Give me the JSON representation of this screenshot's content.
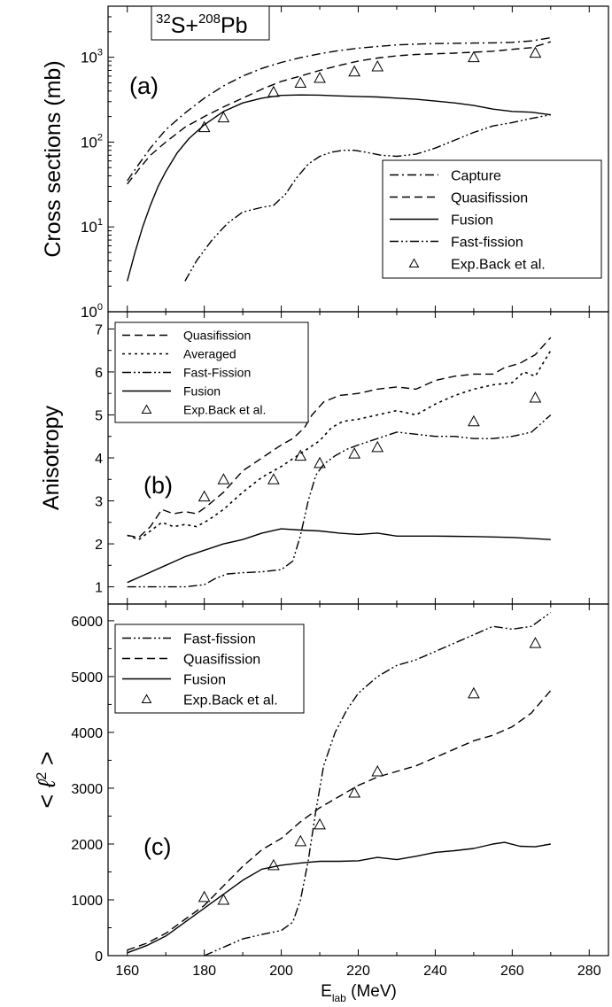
{
  "figure": {
    "xlabel_main": "E",
    "xlabel_sub": "lab",
    "xlabel_unit": " (MeV)"
  },
  "chart_data": [
    {
      "panel_label": "(a)",
      "type": "line",
      "y_scale": "log",
      "ylabel": "Cross sections (mb)",
      "title_parts": [
        "32",
        "S+",
        "208",
        "Pb"
      ],
      "xlim": [
        155,
        285
      ],
      "ylim": [
        1,
        4000
      ],
      "x_ticks": [
        160,
        180,
        200,
        220,
        240,
        260,
        280
      ],
      "y_ticks": [
        {
          "value": 1,
          "base": "10",
          "exp": "0"
        },
        {
          "value": 10,
          "base": "10",
          "exp": "1"
        },
        {
          "value": 100,
          "base": "10",
          "exp": "2"
        },
        {
          "value": 1000,
          "base": "10",
          "exp": "3"
        }
      ],
      "legend_position": "bottom-right",
      "series": [
        {
          "name": "Capture",
          "style": "dashdot",
          "x": [
            160,
            163,
            166,
            170,
            175,
            180,
            185,
            190,
            195,
            200,
            205,
            210,
            215,
            220,
            225,
            230,
            235,
            240,
            245,
            250,
            255,
            260,
            265,
            270
          ],
          "y": [
            35,
            55,
            85,
            140,
            220,
            330,
            460,
            600,
            740,
            870,
            990,
            1100,
            1200,
            1280,
            1340,
            1400,
            1430,
            1450,
            1460,
            1470,
            1480,
            1500,
            1560,
            1700
          ]
        },
        {
          "name": "Quasifission",
          "style": "dashed",
          "x": [
            160,
            163,
            166,
            170,
            175,
            180,
            185,
            190,
            195,
            200,
            205,
            210,
            215,
            220,
            225,
            230,
            235,
            240,
            245,
            250,
            255,
            260,
            265,
            270
          ],
          "y": [
            32,
            48,
            70,
            100,
            150,
            200,
            260,
            330,
            420,
            520,
            600,
            700,
            800,
            900,
            980,
            1040,
            1080,
            1100,
            1120,
            1150,
            1180,
            1240,
            1300,
            1520
          ]
        },
        {
          "name": "Fusion",
          "style": "solid",
          "x": [
            160,
            162,
            164,
            166,
            168,
            170,
            173,
            176,
            180,
            185,
            190,
            195,
            200,
            205,
            210,
            215,
            220,
            225,
            230,
            235,
            240,
            245,
            250,
            255,
            260,
            265,
            270
          ],
          "y": [
            2.3,
            5,
            10,
            18,
            30,
            45,
            75,
            110,
            160,
            230,
            290,
            330,
            355,
            360,
            358,
            350,
            345,
            340,
            330,
            320,
            305,
            290,
            270,
            245,
            230,
            225,
            210
          ]
        },
        {
          "name": "Fast-fission",
          "style": "dashdotdot",
          "x": [
            175,
            178,
            182,
            186,
            190,
            195,
            198,
            201,
            204,
            207,
            210,
            213,
            216,
            219,
            222,
            226,
            230,
            235,
            240,
            245,
            250,
            255,
            260,
            265,
            270
          ],
          "y": [
            2.3,
            4,
            7,
            11,
            15,
            17,
            18,
            24,
            38,
            55,
            68,
            76,
            80,
            80,
            76,
            70,
            68,
            72,
            85,
            105,
            130,
            155,
            170,
            190,
            210
          ]
        },
        {
          "name": "Exp.Back et al.",
          "style": "markers",
          "x": [
            180,
            185,
            198,
            205,
            210,
            219,
            225,
            250,
            266
          ],
          "y": [
            150,
            195,
            390,
            500,
            570,
            680,
            780,
            1000,
            1130
          ]
        }
      ]
    },
    {
      "panel_label": "(b)",
      "type": "line",
      "y_scale": "linear",
      "ylabel": "Anisotropy",
      "xlim": [
        155,
        285
      ],
      "ylim": [
        0.6,
        7.4
      ],
      "x_ticks": [
        160,
        180,
        200,
        220,
        240,
        260,
        280
      ],
      "y_ticks": [
        1,
        2,
        3,
        4,
        5,
        6,
        7
      ],
      "legend_position": "top-left",
      "series": [
        {
          "name": "Quasifission",
          "style": "dashed",
          "x": [
            160,
            163,
            166,
            169,
            172,
            175,
            178,
            181,
            185,
            190,
            195,
            200,
            203,
            206,
            208,
            211,
            215,
            220,
            225,
            230,
            235,
            240,
            245,
            250,
            255,
            258,
            262,
            266,
            270
          ],
          "y": [
            2.2,
            2.15,
            2.4,
            2.8,
            2.7,
            2.75,
            2.7,
            2.9,
            3.2,
            3.7,
            4.0,
            4.3,
            4.45,
            4.7,
            5.0,
            5.3,
            5.45,
            5.5,
            5.6,
            5.65,
            5.6,
            5.8,
            5.9,
            5.95,
            5.95,
            6.1,
            6.2,
            6.4,
            6.8
          ]
        },
        {
          "name": "Averaged",
          "style": "dotted",
          "x": [
            160,
            163,
            166,
            169,
            172,
            175,
            178,
            181,
            185,
            190,
            195,
            200,
            205,
            210,
            213,
            216,
            220,
            225,
            230,
            235,
            240,
            245,
            250,
            255,
            260,
            263,
            266,
            270
          ],
          "y": [
            2.2,
            2.1,
            2.3,
            2.5,
            2.4,
            2.45,
            2.4,
            2.55,
            2.8,
            3.2,
            3.55,
            3.8,
            4.1,
            4.4,
            4.7,
            4.85,
            4.9,
            5.0,
            5.1,
            5.0,
            5.25,
            5.45,
            5.6,
            5.7,
            5.75,
            6.0,
            5.9,
            6.5
          ]
        },
        {
          "name": "Fast-Fission",
          "style": "dashdotdot",
          "x": [
            160,
            165,
            170,
            175,
            180,
            183,
            186,
            190,
            195,
            200,
            203,
            205,
            207,
            209,
            211,
            214,
            217,
            220,
            225,
            230,
            235,
            240,
            245,
            250,
            255,
            260,
            265,
            270
          ],
          "y": [
            1.0,
            1.0,
            1.0,
            1.0,
            1.05,
            1.2,
            1.3,
            1.33,
            1.35,
            1.4,
            1.6,
            2.2,
            3.0,
            3.6,
            3.85,
            4.05,
            4.2,
            4.3,
            4.45,
            4.6,
            4.55,
            4.5,
            4.5,
            4.45,
            4.45,
            4.5,
            4.6,
            5.0
          ]
        },
        {
          "name": "Fusion",
          "style": "solid",
          "x": [
            160,
            165,
            170,
            175,
            180,
            185,
            190,
            195,
            200,
            205,
            210,
            215,
            220,
            225,
            230,
            240,
            250,
            260,
            270
          ],
          "y": [
            1.1,
            1.3,
            1.5,
            1.7,
            1.85,
            2.0,
            2.1,
            2.25,
            2.35,
            2.32,
            2.3,
            2.25,
            2.22,
            2.25,
            2.18,
            2.18,
            2.17,
            2.15,
            2.1
          ]
        },
        {
          "name": "Exp.Back et al.",
          "style": "markers",
          "x": [
            180,
            185,
            198,
            205,
            210,
            219,
            225,
            250,
            266
          ],
          "y": [
            3.1,
            3.5,
            3.5,
            4.05,
            3.88,
            4.1,
            4.25,
            4.85,
            5.4
          ]
        }
      ]
    },
    {
      "panel_label": "(c)",
      "type": "line",
      "y_scale": "linear",
      "ylabel_symbol": "ℓ",
      "ylabel_exp": "2",
      "xlim": [
        155,
        285
      ],
      "ylim": [
        0,
        6300
      ],
      "x_ticks": [
        160,
        180,
        200,
        220,
        240,
        260,
        280
      ],
      "y_ticks": [
        0,
        1000,
        2000,
        3000,
        4000,
        5000,
        6000
      ],
      "legend_position": "top-left",
      "series": [
        {
          "name": "Fast-fission",
          "style": "dashdotdot",
          "x": [
            180,
            185,
            190,
            195,
            200,
            203,
            205,
            207,
            209,
            211,
            214,
            217,
            220,
            225,
            230,
            235,
            240,
            245,
            250,
            255,
            260,
            265,
            270
          ],
          "y": [
            0,
            150,
            300,
            380,
            450,
            600,
            1000,
            1700,
            2600,
            3400,
            4000,
            4400,
            4700,
            5000,
            5200,
            5300,
            5450,
            5600,
            5750,
            5900,
            5850,
            5900,
            6150
          ]
        },
        {
          "name": "Quasifission",
          "style": "dashed",
          "x": [
            160,
            165,
            170,
            175,
            180,
            185,
            190,
            195,
            200,
            205,
            210,
            215,
            220,
            225,
            230,
            235,
            240,
            245,
            250,
            255,
            260,
            265,
            270
          ],
          "y": [
            100,
            220,
            400,
            650,
            900,
            1250,
            1600,
            1900,
            2100,
            2400,
            2650,
            2850,
            3050,
            3200,
            3300,
            3400,
            3550,
            3700,
            3850,
            3950,
            4100,
            4350,
            4750
          ]
        },
        {
          "name": "Fusion",
          "style": "solid",
          "x": [
            160,
            165,
            170,
            175,
            180,
            185,
            190,
            195,
            200,
            205,
            210,
            215,
            220,
            225,
            230,
            235,
            240,
            245,
            250,
            255,
            258,
            262,
            266,
            270
          ],
          "y": [
            50,
            180,
            350,
            600,
            850,
            1100,
            1350,
            1550,
            1620,
            1660,
            1690,
            1690,
            1700,
            1760,
            1720,
            1780,
            1850,
            1880,
            1920,
            2000,
            2030,
            1960,
            1950,
            2000
          ]
        },
        {
          "name": "Exp.Back et al.",
          "style": "markers",
          "x": [
            180,
            185,
            198,
            205,
            210,
            219,
            225,
            250,
            266
          ],
          "y": [
            1050,
            1000,
            1620,
            2050,
            2350,
            2920,
            3300,
            4700,
            5600
          ]
        }
      ]
    }
  ]
}
